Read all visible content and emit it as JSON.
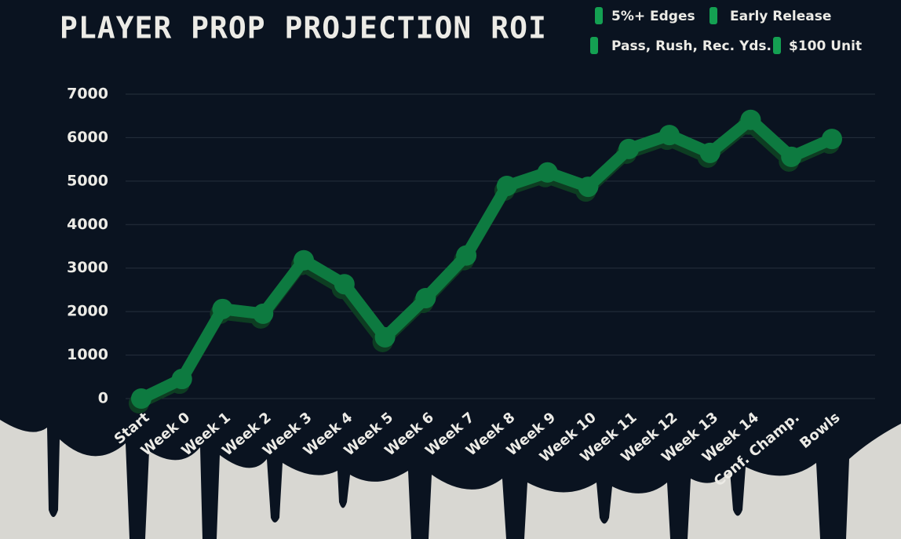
{
  "chart_data": {
    "type": "line",
    "title": "PLAYER PROP PROJECTION ROI",
    "annotations": [
      "5%+ Edges",
      "Early Release",
      "Pass, Rush, Rec. Yds.",
      "$100 Unit"
    ],
    "categories": [
      "Start",
      "Week 0",
      "Week 1",
      "Week 2",
      "Week 3",
      "Week 4",
      "Week 5",
      "Week 6",
      "Week 7",
      "Week 8",
      "Week 9",
      "Week 10",
      "Week 11",
      "Week 12",
      "Week 13",
      "Week 14",
      "Conf. Champ.",
      "Bowls"
    ],
    "values": [
      0,
      450,
      2060,
      1950,
      3180,
      2630,
      1410,
      2310,
      3290,
      4890,
      5200,
      4870,
      5740,
      6060,
      5650,
      6410,
      5560,
      5970
    ],
    "color": "#0f7a40",
    "ylim": [
      0,
      7000
    ],
    "yticks": [
      0,
      1000,
      2000,
      3000,
      4000,
      5000,
      6000,
      7000
    ],
    "grid": true
  }
}
